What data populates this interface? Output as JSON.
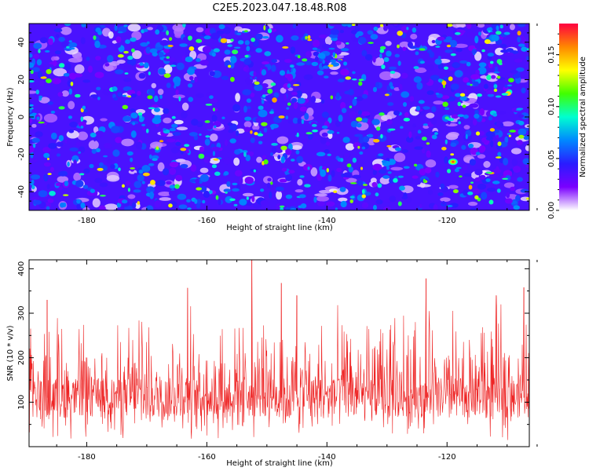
{
  "figure_title": "C2E5.2023.047.18.48.R08",
  "chart_data": [
    {
      "type": "heatmap",
      "name": "spectrogram",
      "xlabel": "Height of straight line (km)",
      "ylabel": "Frequency (Hz)",
      "xlim": [
        -189.6,
        -106.3
      ],
      "ylim": [
        -50,
        50
      ],
      "xticks": [
        -180,
        -160,
        -140,
        -120
      ],
      "yticks": [
        -40,
        -20,
        0,
        20,
        40
      ],
      "colorbar": {
        "label": "Normalized spectral amplitude",
        "range": [
          0.0,
          0.18
        ],
        "ticks": [
          "0.00",
          "0.05",
          "0.10",
          "0.15"
        ],
        "tick_values": [
          0.0,
          0.05,
          0.1,
          0.15
        ],
        "colormap": [
          "#ffffff",
          "#7a00ff",
          "#2a1cff",
          "#0088ff",
          "#00ffd0",
          "#40ff00",
          "#ffff00",
          "#ff8800",
          "#ff0040"
        ]
      },
      "noise_floor_mean": 0.03,
      "noise_peak_max": 0.16,
      "notable_peak": {
        "x": -119.0,
        "y": -24,
        "value": 0.16
      }
    },
    {
      "type": "line",
      "name": "snr",
      "xlabel": "Height of straight line (km)",
      "ylabel": "SNR (10 * v/v)",
      "xlim": [
        -189.6,
        -106.3
      ],
      "ylim": [
        0,
        420
      ],
      "xticks": [
        -180,
        -160,
        -140,
        -120
      ],
      "yticks": [
        100,
        200,
        300,
        400
      ],
      "series_color": "#ee2222",
      "baseline_mean": 110,
      "typical_range": [
        30,
        280
      ],
      "spikes": [
        {
          "x": -152.5,
          "y": 420
        },
        {
          "x": -147.6,
          "y": 368
        },
        {
          "x": -145.0,
          "y": 340
        },
        {
          "x": -123.5,
          "y": 378
        },
        {
          "x": -111.8,
          "y": 340
        },
        {
          "x": -107.2,
          "y": 358
        },
        {
          "x": -186.6,
          "y": 330
        },
        {
          "x": -163.2,
          "y": 357
        }
      ]
    }
  ]
}
